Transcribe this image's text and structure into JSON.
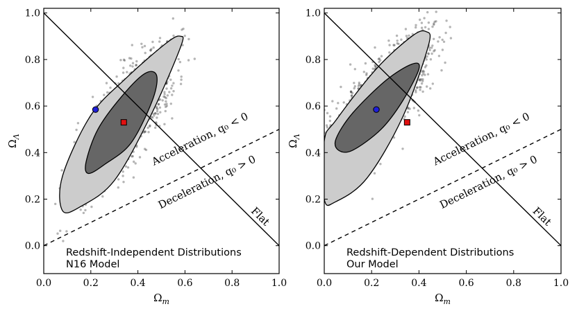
{
  "colors": {
    "scatter": "#1a1a1a",
    "outer_contour": "#cccccc",
    "inner_contour": "#666666",
    "blue_point": "#1f1fd9",
    "red_point": "#e01010"
  },
  "chart_data": [
    {
      "type": "scatter",
      "panel": "left",
      "xlabel": "Ωm",
      "ylabel": "ΩΛ",
      "xlim": [
        0.0,
        1.0
      ],
      "ylim": [
        -0.12,
        1.02
      ],
      "xticks": [
        "0.0",
        "0.2",
        "0.4",
        "0.6",
        "0.8",
        "1.0"
      ],
      "yticks": [
        "0.0",
        "0.2",
        "0.4",
        "0.6",
        "0.8",
        "1.0"
      ],
      "samples": {
        "center": [
          0.34,
          0.54
        ],
        "sigma_major": 0.16,
        "sigma_minor": 0.035,
        "slope_deg": 58
      },
      "contours": {
        "outer": [
          [
            0.08,
            0.15
          ],
          [
            0.16,
            0.17
          ],
          [
            0.3,
            0.28
          ],
          [
            0.45,
            0.55
          ],
          [
            0.58,
            0.85
          ],
          [
            0.58,
            0.9
          ],
          [
            0.52,
            0.87
          ],
          [
            0.35,
            0.72
          ],
          [
            0.2,
            0.56
          ],
          [
            0.08,
            0.3
          ]
        ],
        "inner": [
          [
            0.19,
            0.31
          ],
          [
            0.26,
            0.35
          ],
          [
            0.37,
            0.44
          ],
          [
            0.46,
            0.62
          ],
          [
            0.48,
            0.73
          ],
          [
            0.43,
            0.74
          ],
          [
            0.33,
            0.64
          ],
          [
            0.23,
            0.5
          ],
          [
            0.18,
            0.36
          ]
        ]
      },
      "points": [
        {
          "name": "blue-circle",
          "x": 0.22,
          "y": 0.585
        },
        {
          "name": "red-square",
          "x": 0.34,
          "y": 0.53
        }
      ],
      "lines": {
        "flat": [
          [
            0.0,
            1.0
          ],
          [
            1.0,
            0.0
          ]
        ],
        "deceleration": [
          [
            0.0,
            0.0
          ],
          [
            1.0,
            0.5
          ]
        ]
      },
      "annotations": {
        "acceleration": "Acceleration, q₀ < 0",
        "deceleration": "Deceleration, q₀ > 0",
        "flat": "Flat"
      },
      "notes": [
        "Redshift-Independent Distributions",
        "N16 Model"
      ]
    },
    {
      "type": "scatter",
      "panel": "right",
      "xlabel": "Ωm",
      "ylabel": "ΩΛ",
      "xlim": [
        0.0,
        1.0
      ],
      "ylim": [
        -0.12,
        1.02
      ],
      "xticks": [
        "0.0",
        "0.2",
        "0.4",
        "0.6",
        "0.8",
        "1.0"
      ],
      "yticks": [
        "0.0",
        "0.2",
        "0.4",
        "0.6",
        "0.8",
        "1.0"
      ],
      "samples": {
        "center": [
          0.22,
          0.6
        ],
        "sigma_major": 0.17,
        "sigma_minor": 0.038,
        "slope_deg": 55
      },
      "contours": {
        "outer": [
          [
            0.0,
            0.2
          ],
          [
            0.05,
            0.19
          ],
          [
            0.18,
            0.29
          ],
          [
            0.33,
            0.55
          ],
          [
            0.44,
            0.86
          ],
          [
            0.43,
            0.92
          ],
          [
            0.37,
            0.9
          ],
          [
            0.22,
            0.76
          ],
          [
            0.05,
            0.54
          ],
          [
            0.0,
            0.45
          ]
        ],
        "inner": [
          [
            0.06,
            0.41
          ],
          [
            0.12,
            0.41
          ],
          [
            0.24,
            0.5
          ],
          [
            0.33,
            0.62
          ],
          [
            0.4,
            0.76
          ],
          [
            0.37,
            0.78
          ],
          [
            0.26,
            0.71
          ],
          [
            0.12,
            0.57
          ],
          [
            0.05,
            0.46
          ]
        ]
      },
      "points": [
        {
          "name": "blue-circle",
          "x": 0.22,
          "y": 0.585
        },
        {
          "name": "red-square",
          "x": 0.35,
          "y": 0.53
        }
      ],
      "lines": {
        "flat": [
          [
            0.0,
            1.0
          ],
          [
            1.0,
            0.0
          ]
        ],
        "deceleration": [
          [
            0.0,
            0.0
          ],
          [
            1.0,
            0.5
          ]
        ]
      },
      "annotations": {
        "acceleration": "Acceleration, q₀ < 0",
        "deceleration": "Deceleration, q₀ > 0",
        "flat": "Flat"
      },
      "notes": [
        "Redshift-Dependent Distributions",
        "Our Model"
      ]
    }
  ]
}
